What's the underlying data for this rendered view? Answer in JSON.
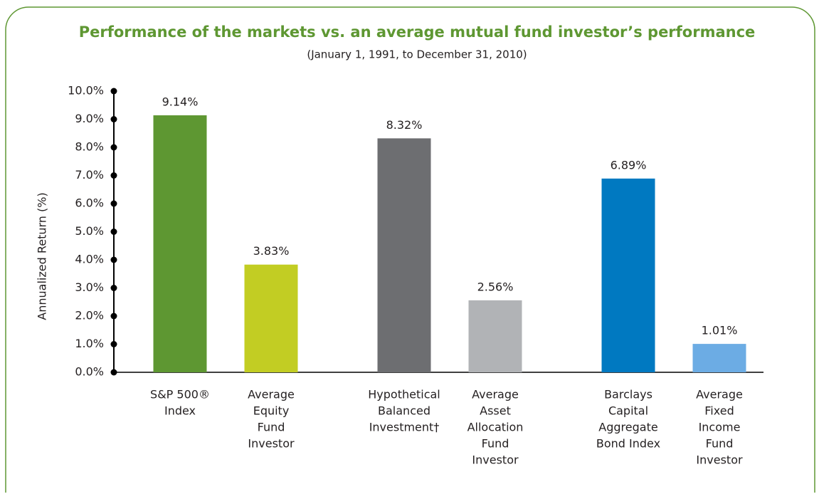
{
  "chart_data": {
    "type": "bar",
    "title": "Performance of the markets vs. an average mutual fund investor’s performance",
    "subtitle": "(January 1, 1991, to December 31, 2010)",
    "y_label": "Annualized Return (%)",
    "categories": [
      [
        "S&P 500®",
        "Index"
      ],
      [
        "Average",
        "Equity",
        "Fund",
        "Investor"
      ],
      [
        "Hypothetical",
        "Balanced",
        "Investment†"
      ],
      [
        "Average",
        "Asset",
        "Allocation",
        "Fund",
        "Investor"
      ],
      [
        "Barclays",
        "Capital",
        "Aggregate",
        "Bond Index"
      ],
      [
        "Average",
        "Fixed",
        "Income",
        "Fund",
        "Investor"
      ]
    ],
    "values": [
      9.14,
      3.83,
      8.32,
      2.56,
      6.89,
      1.01
    ],
    "value_labels": [
      "9.14%",
      "3.83%",
      "8.32%",
      "2.56%",
      "6.89%",
      "1.01%"
    ],
    "colors": [
      "#5e9732",
      "#c2cd23",
      "#6d6e71",
      "#b1b3b6",
      "#0079c1",
      "#6cace4"
    ],
    "ylim": [
      0,
      10
    ],
    "yticks": [
      {
        "value": 0,
        "label": "0.0%"
      },
      {
        "value": 1,
        "label": "1.0%"
      },
      {
        "value": 2,
        "label": "2.0%"
      },
      {
        "value": 3,
        "label": "3.0%"
      },
      {
        "value": 4,
        "label": "4.0%"
      },
      {
        "value": 5,
        "label": "5.0%"
      },
      {
        "value": 6,
        "label": "6.0%"
      },
      {
        "value": 7,
        "label": "7.0%"
      },
      {
        "value": 8,
        "label": "8.0%"
      },
      {
        "value": 9,
        "label": "9.0%"
      },
      {
        "value": 10,
        "label": "10.0%"
      }
    ]
  }
}
